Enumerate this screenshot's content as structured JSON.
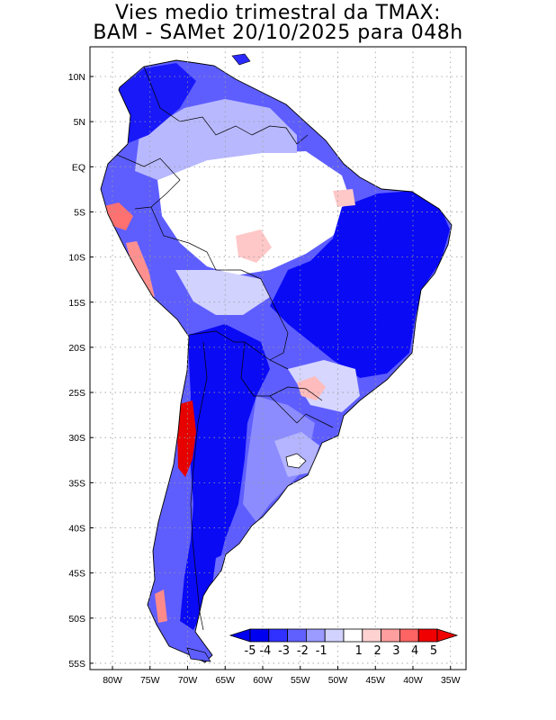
{
  "title": {
    "line1": "Vies medio trimestral da TMAX:",
    "line2": "BAM - SAMet 20/10/2025  para 048h"
  },
  "axes": {
    "lat_labels": [
      "10N",
      "5N",
      "EQ",
      "5S",
      "10S",
      "15S",
      "20S",
      "25S",
      "30S",
      "35S",
      "40S",
      "45S",
      "50S",
      "55S"
    ],
    "lon_labels": [
      "80W",
      "75W",
      "70W",
      "65W",
      "60W",
      "55W",
      "50W",
      "45W",
      "40W",
      "35W"
    ]
  },
  "colorbar": {
    "labels": [
      "-5",
      "-4",
      "-3",
      "-2",
      "-1",
      "1",
      "2",
      "3",
      "4",
      "5"
    ],
    "colors": [
      "#0000f0",
      "#3030ff",
      "#6060ff",
      "#9a9aff",
      "#d2d2ff",
      "#ffffff",
      "#ffd2d2",
      "#ff9e9e",
      "#ff6464",
      "#f00000"
    ],
    "under_color": "#0000f0",
    "over_color": "#f00000"
  },
  "colors": {
    "coast": "#000000",
    "grid": "#9a9a9a"
  }
}
